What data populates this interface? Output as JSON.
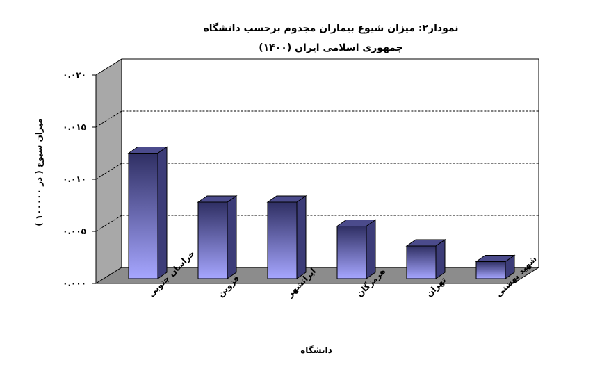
{
  "chart_data": {
    "type": "bar",
    "title": "نمودار۲: میزان شیوع بیماران مجذوم برحسب دانشگاه",
    "subtitle": "جمهوری اسلامی ایران (۱۴۰۰)",
    "xlabel": "دانشگاه",
    "ylabel": "میزان شیوع  ( در ۱۰۰۰۰۰ )",
    "ylim": [
      0,
      0.02
    ],
    "yticks": [
      0,
      0.005,
      0.01,
      0.015,
      0.02
    ],
    "ytick_labels": [
      "۰.۰۰۰",
      "۰.۰۰۵",
      "۰.۰۱۰",
      "۰.۰۱۵",
      "۰.۰۲۰"
    ],
    "categories": [
      "خراسان جنوبی",
      "قزوین",
      "ایرانشهر",
      "هرمزگان",
      "تهران",
      "شهید بهشتی"
    ],
    "values": [
      0.0121,
      0.0074,
      0.0074,
      0.0051,
      0.0032,
      0.0017
    ],
    "grid": true,
    "legend": "none",
    "colors": {
      "bar_top": "#2f2f63",
      "bar_bottom": "#a6a6ff",
      "bar_side": "#3c3c78",
      "bar_cap": "#4b4b8c",
      "wall": "#ffffff",
      "side_wall": "#a8a8a8",
      "floor": "#8c8c8c",
      "grid": "#000000"
    }
  }
}
